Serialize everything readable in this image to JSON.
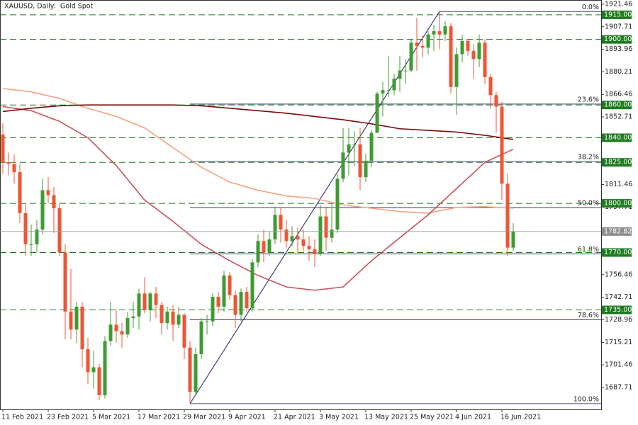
{
  "chart_data": {
    "type": "candlestick",
    "title": "XAUUSD, Daily:  Gold Spot",
    "categories": [
      "11 Feb 2021",
      null,
      null,
      null,
      null,
      null,
      null,
      null,
      "23 Feb 2021",
      null,
      null,
      null,
      null,
      null,
      null,
      null,
      "5 Mar 2021",
      null,
      null,
      null,
      null,
      null,
      null,
      null,
      "17 Mar 2021",
      null,
      null,
      null,
      null,
      null,
      null,
      null,
      "29 Mar 2021",
      null,
      null,
      null,
      null,
      null,
      null,
      null,
      "9 Apr 2021",
      null,
      null,
      null,
      null,
      null,
      null,
      null,
      "21 Apr 2021",
      null,
      null,
      null,
      null,
      null,
      null,
      null,
      "3 May 2021",
      null,
      null,
      null,
      null,
      null,
      null,
      null,
      "13 May 2021",
      null,
      null,
      null,
      null,
      null,
      null,
      null,
      "25 May 2021",
      null,
      null,
      null,
      null,
      null,
      null,
      null,
      "4 Jun 2021",
      null,
      null,
      null,
      null,
      null,
      null,
      null,
      "16 Jun 2021",
      null,
      null
    ],
    "open": [
      1842,
      1825,
      1824,
      1819,
      1794,
      1775,
      1775,
      1784,
      1808,
      1805,
      1797,
      1770,
      1734,
      1723,
      1737,
      1711,
      1697,
      1700,
      1683,
      1716,
      1726,
      1722,
      1720,
      1730,
      1731,
      1745,
      1735,
      1745,
      1738,
      1727,
      1734,
      1726,
      1732,
      1712,
      1685,
      1708,
      1728,
      1728,
      1743,
      1737,
      1756,
      1744,
      1732,
      1746,
      1736,
      1764,
      1777,
      1770,
      1778,
      1793,
      1784,
      1777,
      1780,
      1778,
      1774,
      1772,
      1769,
      1792,
      1779,
      1784,
      1815,
      1831,
      1836,
      1836,
      1816,
      1826,
      1843,
      1867,
      1869,
      1869,
      1876,
      1881,
      1881,
      1898,
      1896,
      1895,
      1903,
      1905,
      1903,
      1908,
      1871,
      1891,
      1899,
      1893,
      1888,
      1898,
      1877,
      1866,
      1859,
      1812,
      1773
    ],
    "high": [
      1849,
      1831,
      1830,
      1824,
      1800,
      1787,
      1790,
      1815,
      1816,
      1810,
      1800,
      1775,
      1760,
      1740,
      1740,
      1718,
      1710,
      1702,
      1719,
      1740,
      1735,
      1727,
      1734,
      1740,
      1748,
      1755,
      1746,
      1749,
      1740,
      1737,
      1738,
      1737,
      1733,
      1716,
      1712,
      1730,
      1732,
      1745,
      1746,
      1759,
      1758,
      1747,
      1748,
      1749,
      1766,
      1781,
      1784,
      1783,
      1798,
      1797,
      1790,
      1786,
      1785,
      1784,
      1780,
      1778,
      1799,
      1798,
      1800,
      1818,
      1846,
      1846,
      1844,
      1846,
      1830,
      1845,
      1868,
      1874,
      1890,
      1879,
      1890,
      1888,
      1900,
      1913,
      1902,
      1905,
      1909,
      1917,
      1911,
      1910,
      1895,
      1903,
      1900,
      1897,
      1903,
      1900,
      1879,
      1868,
      1862,
      1818,
      1788
    ],
    "low": [
      1818,
      1817,
      1812,
      1788,
      1768,
      1768,
      1770,
      1781,
      1800,
      1782,
      1768,
      1717,
      1717,
      1715,
      1700,
      1690,
      1687,
      1680,
      1681,
      1713,
      1715,
      1712,
      1718,
      1724,
      1723,
      1733,
      1728,
      1730,
      1720,
      1723,
      1716,
      1724,
      1705,
      1677.8,
      1683,
      1705,
      1720,
      1725,
      1733,
      1734,
      1741,
      1724,
      1728,
      1734,
      1734,
      1761,
      1764,
      1768,
      1775,
      1776,
      1773,
      1774,
      1770,
      1771,
      1765,
      1761,
      1768,
      1771,
      1776,
      1782,
      1813,
      1817,
      1823,
      1808,
      1813,
      1822,
      1843,
      1853,
      1865,
      1866,
      1868,
      1873,
      1880,
      1881,
      1889,
      1891,
      1893,
      1894,
      1899,
      1867,
      1854,
      1886,
      1890,
      1876,
      1883,
      1873,
      1858,
      1843,
      1802,
      1768,
      1771
    ],
    "close": [
      1825,
      1824,
      1819,
      1794,
      1775,
      1775,
      1784,
      1808,
      1805,
      1797,
      1770,
      1734,
      1723,
      1737,
      1711,
      1697,
      1700,
      1683,
      1716,
      1726,
      1722,
      1720,
      1730,
      1731,
      1745,
      1735,
      1745,
      1738,
      1727,
      1734,
      1726,
      1732,
      1712,
      1685,
      1708,
      1728,
      1728,
      1743,
      1737,
      1756,
      1744,
      1732,
      1746,
      1736,
      1764,
      1777,
      1770,
      1778,
      1793,
      1784,
      1777,
      1780,
      1778,
      1774,
      1772,
      1769,
      1792,
      1779,
      1784,
      1815,
      1831,
      1836,
      1836,
      1816,
      1826,
      1843,
      1867,
      1869,
      1869,
      1876,
      1881,
      1881,
      1898,
      1896,
      1895,
      1903,
      1905,
      1903,
      1908,
      1871,
      1891,
      1899,
      1893,
      1888,
      1898,
      1877,
      1866,
      1859,
      1812,
      1773,
      1782.82
    ],
    "up_color": "#3f9b33",
    "down_color": "#ef5533",
    "ma_x": [
      0,
      5,
      10,
      15,
      20,
      25,
      30,
      35,
      40,
      45,
      50,
      55,
      60,
      65,
      70,
      75,
      80,
      85,
      90
    ],
    "moving_averages": [
      {
        "color": "#f6a27e",
        "values": [
          1870,
          1868,
          1864,
          1858,
          1853,
          1846,
          1834,
          1822,
          1813,
          1808,
          1804.5,
          1803,
          1799,
          1797,
          1795,
          1794,
          1797.5,
          1798,
          1797
        ]
      },
      {
        "color": "#c8515a",
        "values": [
          1859,
          1856.5,
          1850,
          1840,
          1823,
          1802,
          1789,
          1775,
          1765,
          1756,
          1749,
          1747,
          1749,
          1765,
          1779,
          1793,
          1809,
          1825,
          1833
        ]
      },
      {
        "color": "#7a0a0a",
        "values": [
          1856,
          1858,
          1859.5,
          1860,
          1860,
          1860,
          1860,
          1859.5,
          1858,
          1856.5,
          1855,
          1853,
          1851,
          1848.5,
          1845.5,
          1844.5,
          1843.5,
          1841.5,
          1839
        ]
      }
    ],
    "levels": [
      {
        "value": 1915,
        "label": "1915.00"
      },
      {
        "value": 1900,
        "label": "1900.00"
      },
      {
        "value": 1860,
        "label": "1860.00"
      },
      {
        "value": 1840,
        "label": "1840.00"
      },
      {
        "value": 1825,
        "label": "1825.00"
      },
      {
        "value": 1800,
        "label": "1800.00"
      },
      {
        "value": 1770,
        "label": "1770.00"
      },
      {
        "value": 1735,
        "label": "1735.00"
      }
    ],
    "level_color": "#1e7a1e",
    "fibonacci": {
      "high": 1917,
      "low": 1677.8,
      "color": "#1c1c6a",
      "levels": [
        {
          "value": 0,
          "label": "0.0%"
        },
        {
          "value": 23.6,
          "label": "23.6%"
        },
        {
          "value": 38.2,
          "label": "38.2%"
        },
        {
          "value": 50,
          "label": "50.0%"
        },
        {
          "value": 61.8,
          "label": "61.8%"
        },
        {
          "value": 78.6,
          "label": "78.6%"
        },
        {
          "value": 100,
          "label": "100.0%"
        }
      ]
    },
    "ylim": [
      1674.3,
      1923.6
    ],
    "yticks": [
      1687.71,
      1701.46,
      1715.21,
      1728.96,
      1742.71,
      1756.46,
      1797.71,
      1811.46,
      1852.71,
      1866.46,
      1880.21,
      1893.96,
      1907.71,
      1921.46
    ]
  }
}
